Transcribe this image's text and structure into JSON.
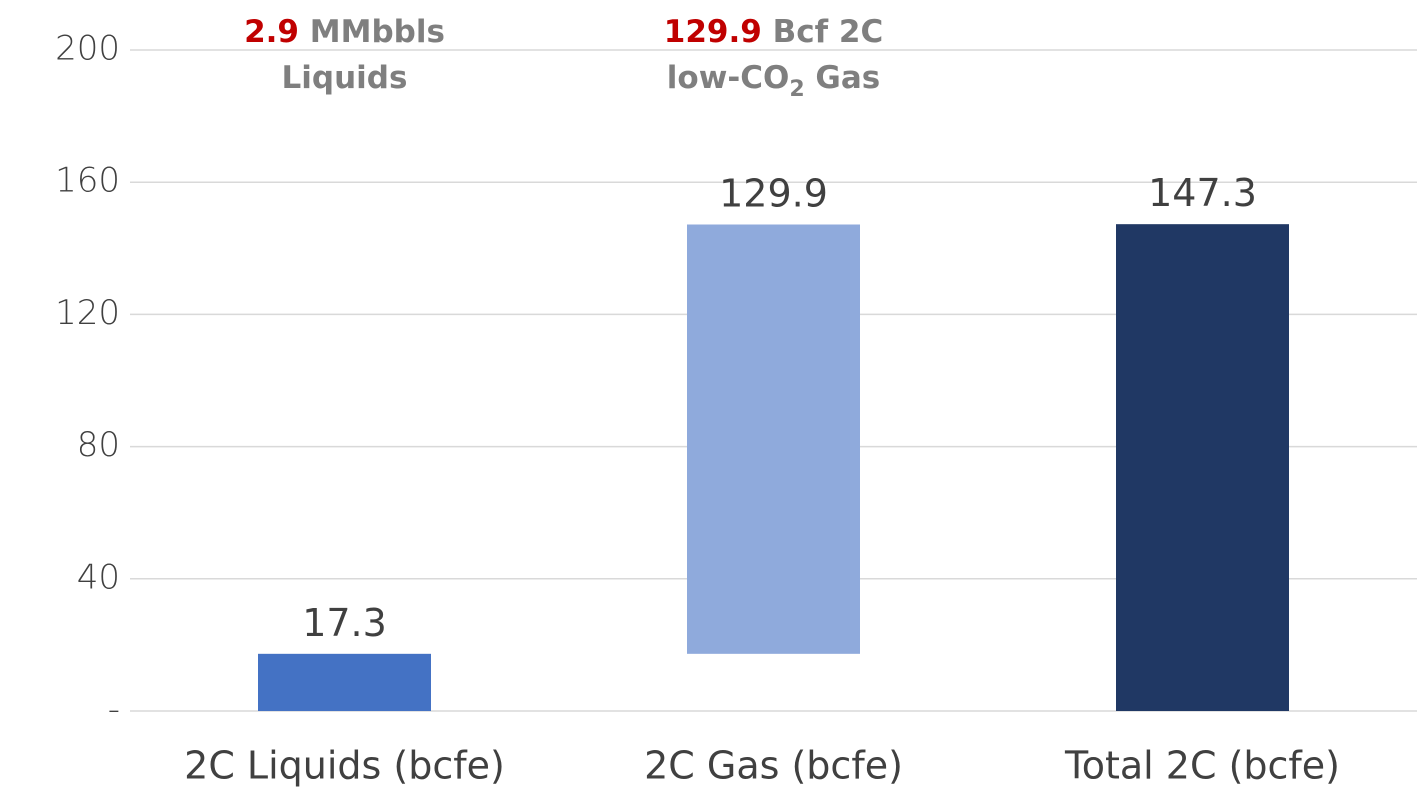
{
  "chart_data": {
    "type": "waterfall",
    "categories": [
      "2C Liquids (bcfe)",
      "2C Gas (bcfe)",
      "Total 2C (bcfe)"
    ],
    "values": [
      17.3,
      129.9,
      147.3
    ],
    "total": [
      false,
      false,
      true
    ],
    "colors": [
      "#4472c4",
      "#8faadc",
      "#203864"
    ],
    "ylim": [
      0,
      200
    ],
    "yticks": [
      {
        "value": 0,
        "label": "-"
      },
      40,
      80,
      120,
      160,
      200
    ],
    "grid": true,
    "annotations": [
      {
        "category": 0,
        "lines": [
          [
            {
              "text": "2.9",
              "color": "#c00000"
            },
            {
              "text": " MMbbls"
            }
          ],
          [
            {
              "text": "Liquids"
            }
          ]
        ]
      },
      {
        "category": 1,
        "lines": [
          [
            {
              "text": "129.9",
              "color": "#c00000"
            },
            {
              "text": " Bcf 2C"
            }
          ],
          [
            {
              "text": "low-CO"
            },
            {
              "text": "2",
              "baseline": "sub"
            },
            {
              "text": " Gas"
            }
          ]
        ]
      }
    ]
  }
}
